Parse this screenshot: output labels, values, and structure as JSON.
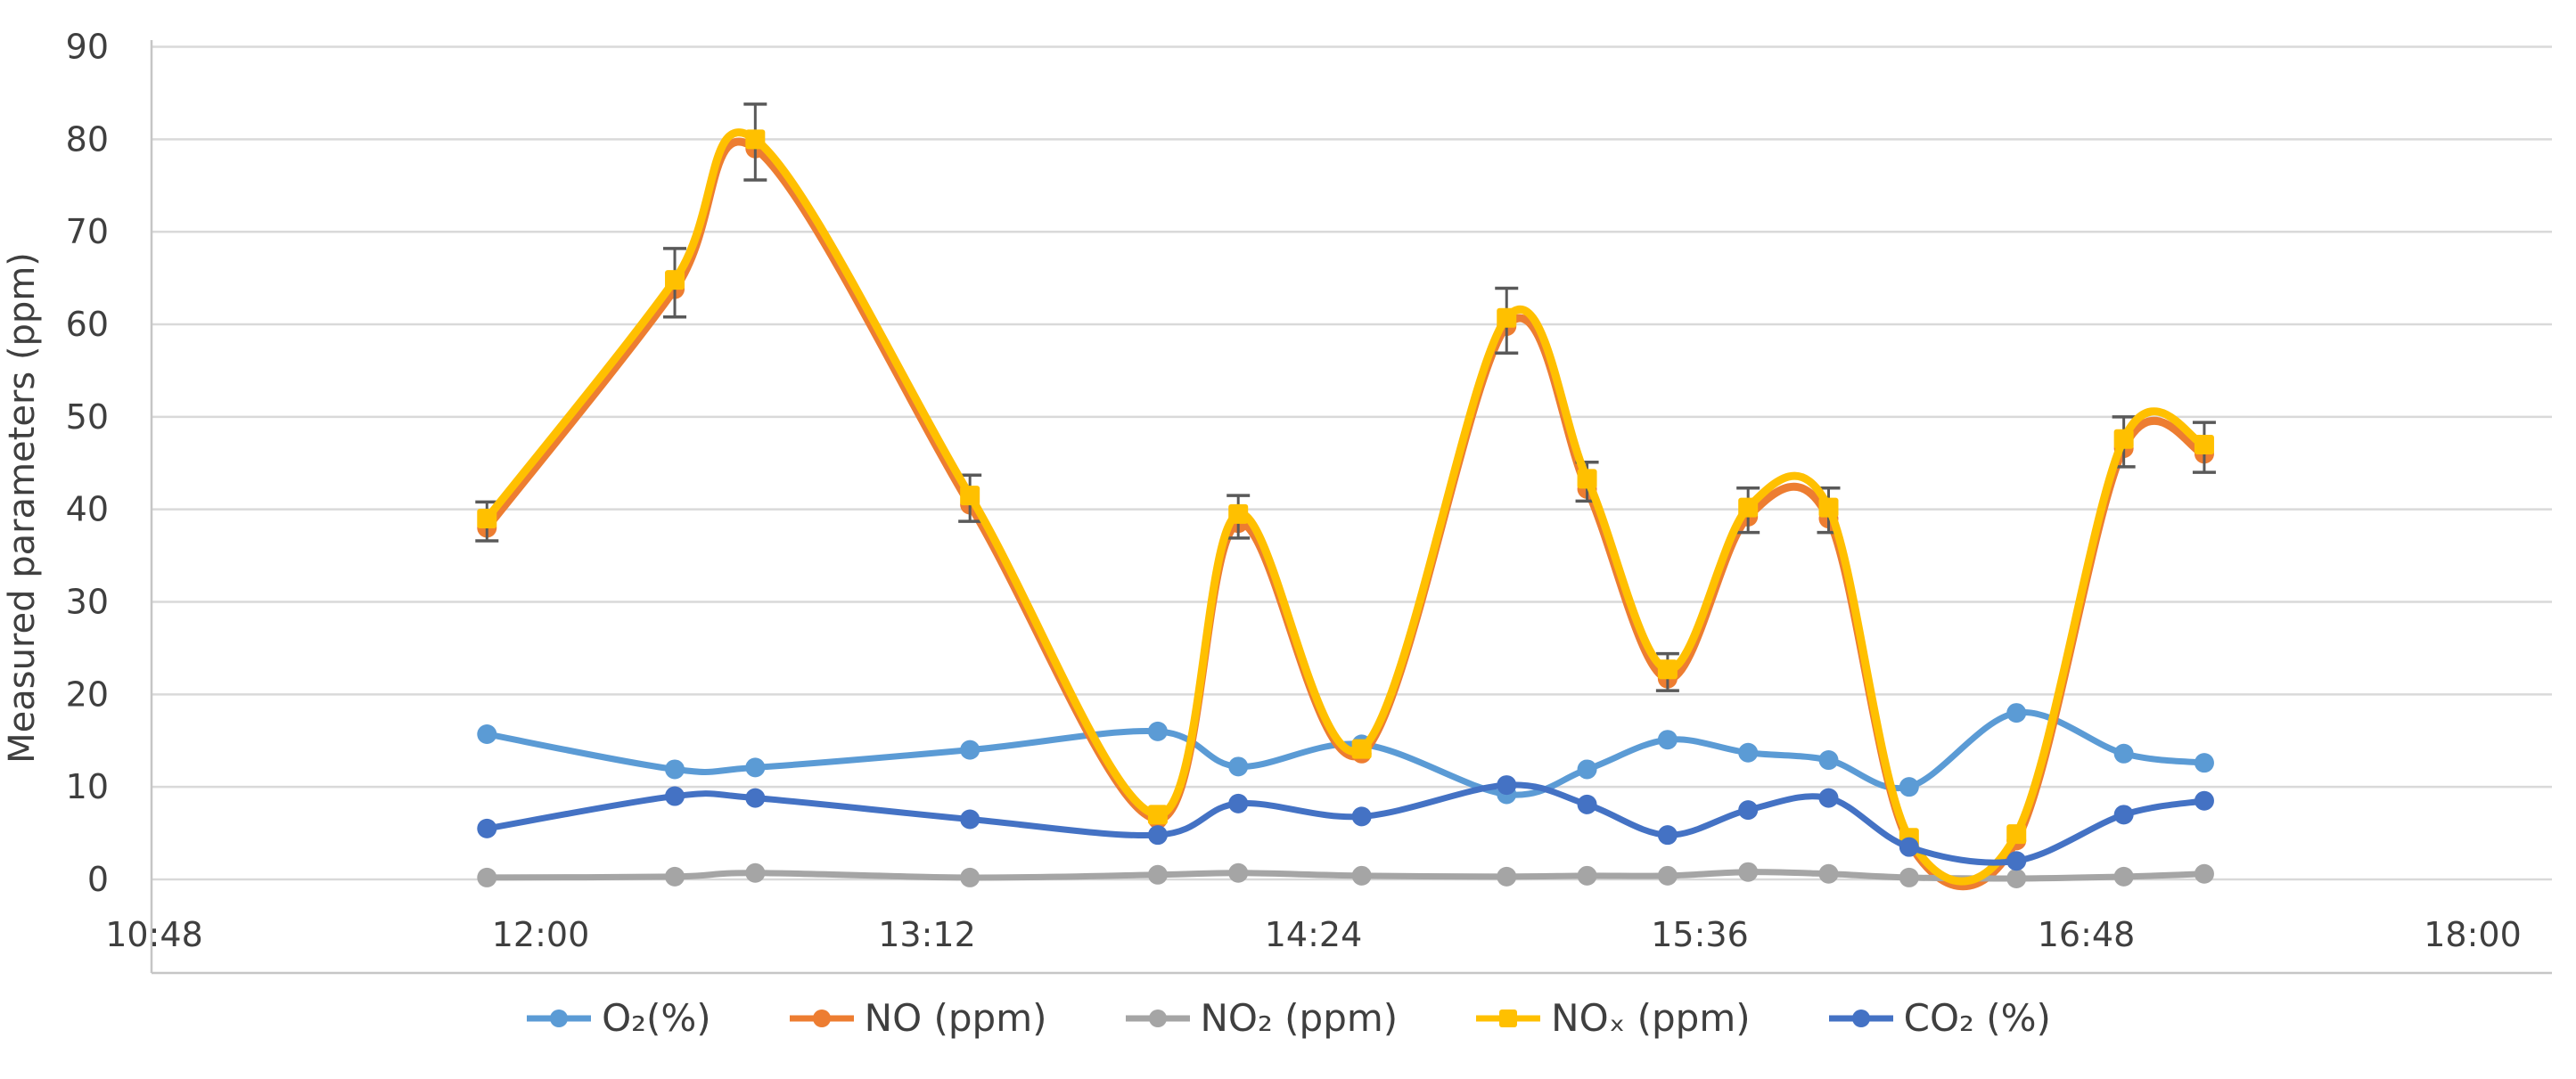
{
  "chart_data": {
    "type": "line",
    "title": "",
    "xlabel": "",
    "ylabel": "Measured parameters (ppm)",
    "grid": true,
    "smoothed": true,
    "legend_position": "bottom",
    "ylim": [
      0,
      90
    ],
    "ytick_step": 10,
    "ytick_labels": [
      "0",
      "10",
      "20",
      "30",
      "40",
      "50",
      "60",
      "70",
      "80",
      "90"
    ],
    "x_axis_tick_labels": [
      "10:48",
      "12:00",
      "13:12",
      "14:24",
      "15:36",
      "16:48",
      "18:00"
    ],
    "x_axis_start": "10:48",
    "x_axis_end": "18:00",
    "x_axis_tick_interval_minutes": 72,
    "x": [
      "11:50",
      "12:25",
      "12:40",
      "13:20",
      "13:55",
      "14:10",
      "14:33",
      "15:00",
      "15:15",
      "15:30",
      "15:45",
      "16:00",
      "16:15",
      "16:35",
      "16:55",
      "17:10"
    ],
    "x_minutes_since_axis_start": [
      62,
      97,
      112,
      152,
      187,
      202,
      225,
      252,
      267,
      282,
      297,
      312,
      327,
      347,
      367,
      382
    ],
    "series": [
      {
        "name": "O₂(%)",
        "key": "o2",
        "color": "#5B9BD5",
        "marker": "circle",
        "values": [
          15.7,
          11.9,
          12.1,
          14.0,
          16.0,
          12.2,
          14.6,
          9.2,
          11.9,
          15.1,
          13.7,
          12.9,
          10.0,
          18.0,
          13.6,
          12.6
        ]
      },
      {
        "name": "NO (ppm)",
        "key": "no",
        "color": "#ED7D31",
        "marker": "circle",
        "values": [
          38.0,
          63.8,
          79.0,
          40.5,
          6.5,
          38.5,
          13.6,
          59.8,
          42.2,
          21.7,
          39.2,
          39.0,
          4.0,
          4.2,
          46.6,
          46.0
        ]
      },
      {
        "name": "NO₂ (ppm)",
        "key": "no2",
        "color": "#A5A5A5",
        "marker": "circle",
        "values": [
          0.2,
          0.3,
          0.7,
          0.2,
          0.5,
          0.7,
          0.4,
          0.3,
          0.4,
          0.4,
          0.8,
          0.6,
          0.2,
          0.1,
          0.3,
          0.6
        ]
      },
      {
        "name": "NOₓ (ppm)",
        "key": "nox",
        "color": "#FFC000",
        "marker": "square",
        "values": [
          39.0,
          64.8,
          80.0,
          41.5,
          7.0,
          39.5,
          14.1,
          60.7,
          43.3,
          22.7,
          40.2,
          40.2,
          4.5,
          4.9,
          47.6,
          47.0
        ],
        "error": [
          1.8,
          3.4,
          3.8,
          2.2,
          0,
          2.0,
          0,
          3.2,
          1.8,
          1.7,
          2.1,
          2.1,
          0,
          0,
          2.4,
          2.4
        ]
      },
      {
        "name": "CO₂ (%)",
        "key": "co2",
        "color": "#4472C4",
        "marker": "circle",
        "values": [
          5.5,
          9.0,
          8.8,
          6.5,
          4.8,
          8.2,
          6.8,
          10.2,
          8.1,
          4.8,
          7.5,
          8.8,
          3.5,
          2.0,
          7.0,
          8.5
        ]
      }
    ],
    "colors": {
      "gridline": "#D9D9D9",
      "plot_border": "#C6C6C6",
      "error_bar": "#595959",
      "text": "#3f3f3f"
    }
  }
}
